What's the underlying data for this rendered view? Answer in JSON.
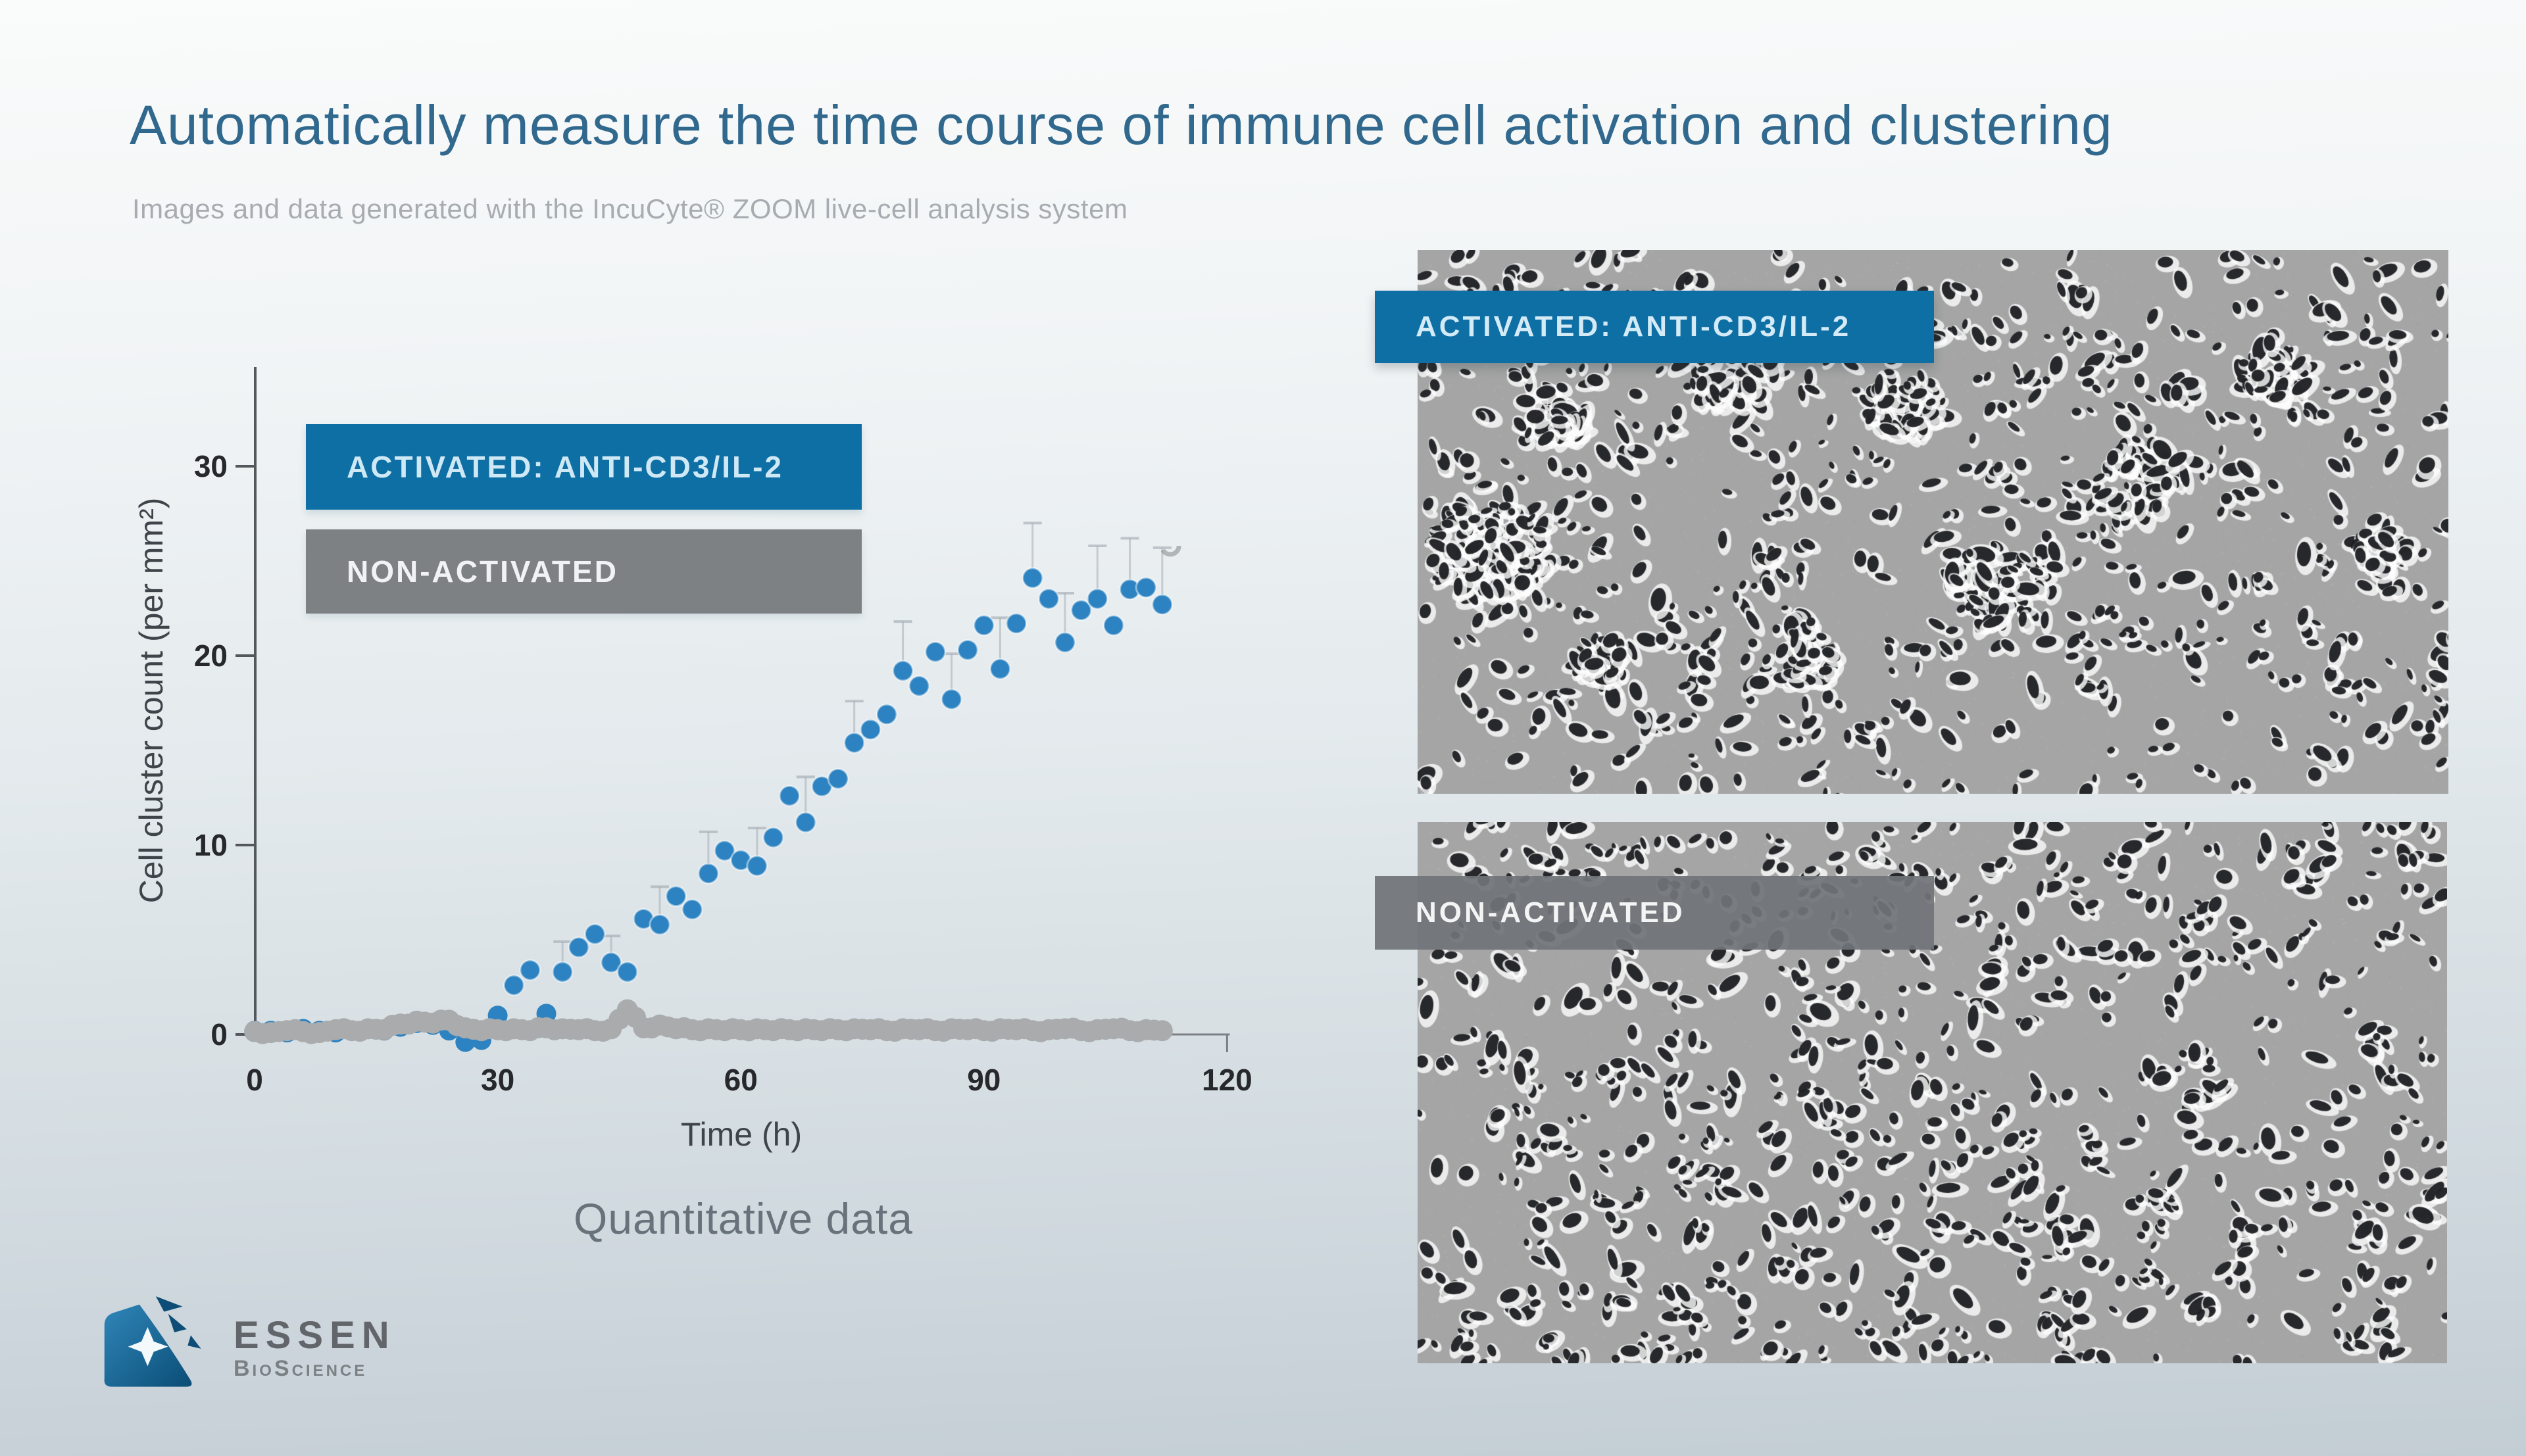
{
  "slide": {
    "title": "Automatically measure the time course of immune cell activation and clustering",
    "subtitle": "Images and data generated with the IncuCyte® ZOOM live-cell analysis system",
    "caption": "Quantitative data"
  },
  "logo": {
    "name": "ESSEN",
    "sub": "BioScience"
  },
  "chart_data": {
    "type": "scatter",
    "title": "",
    "xlabel": "Time (h)",
    "ylabel": "Cell cluster count (per mm²)",
    "xlim": [
      0,
      120
    ],
    "ylim": [
      0,
      34
    ],
    "xticks": [
      0,
      30,
      60,
      90,
      120
    ],
    "yticks": [
      0,
      10,
      20,
      30
    ],
    "grid": false,
    "legend_position": "top-left-inside",
    "x": [
      0,
      2,
      4,
      6,
      8,
      10,
      12,
      14,
      16,
      18,
      20,
      22,
      24,
      26,
      28,
      30,
      32,
      34,
      36,
      38,
      40,
      42,
      44,
      46,
      48,
      50,
      52,
      54,
      56,
      58,
      60,
      62,
      64,
      66,
      68,
      70,
      72,
      74,
      76,
      78,
      80,
      82,
      84,
      86,
      88,
      90,
      92,
      94,
      96,
      98,
      100,
      102,
      104,
      106,
      108,
      110,
      112
    ],
    "series": [
      {
        "name": "ACTIVATED: ANTI-CD3/IL-2",
        "legend_color": "#0e6fa4",
        "point_color": "#2d83c1",
        "values": [
          0.2,
          0.2,
          0.1,
          0.3,
          0.2,
          0.1,
          0.2,
          0.3,
          0.2,
          0.4,
          0.6,
          0.5,
          0.2,
          -0.4,
          -0.3,
          1.0,
          2.6,
          3.4,
          1.1,
          3.3,
          4.6,
          5.3,
          3.8,
          3.3,
          6.1,
          5.8,
          7.3,
          6.6,
          8.5,
          9.7,
          9.2,
          8.9,
          10.4,
          12.6,
          11.2,
          13.1,
          13.5,
          15.4,
          16.1,
          16.9,
          19.2,
          18.4,
          20.2,
          17.7,
          20.3,
          21.6,
          19.3,
          21.7,
          24.1,
          23.0,
          20.7,
          22.4,
          23.0,
          21.6,
          23.5,
          23.6,
          22.7
        ],
        "error_bars": {
          "x": [
            38,
            44,
            50,
            56,
            62,
            68,
            74,
            80,
            86,
            92,
            96,
            100,
            104,
            108,
            112
          ],
          "up": [
            1.6,
            1.4,
            2.0,
            2.2,
            2.0,
            2.4,
            2.2,
            2.6,
            2.4,
            2.7,
            2.9,
            2.6,
            2.8,
            2.7,
            3.0
          ]
        }
      },
      {
        "name": "NON-ACTIVATED",
        "legend_color": "#7e8184",
        "point_color": "#a9abac",
        "values": [
          0.15,
          0.1,
          0.2,
          0.15,
          0.1,
          0.25,
          0.2,
          0.3,
          0.25,
          0.55,
          0.7,
          0.6,
          0.75,
          0.35,
          0.2,
          0.25,
          0.3,
          0.2,
          0.35,
          0.3,
          0.25,
          0.2,
          0.3,
          1.3,
          0.35,
          0.5,
          0.3,
          0.25,
          0.3,
          0.2,
          0.25,
          0.3,
          0.2,
          0.25,
          0.3,
          0.2,
          0.25,
          0.3,
          0.25,
          0.2,
          0.3,
          0.25,
          0.2,
          0.3,
          0.25,
          0.2,
          0.3,
          0.25,
          0.2,
          0.25,
          0.3,
          0.2,
          0.25,
          0.3,
          0.2,
          0.25,
          0.2
        ]
      }
    ],
    "ghost_point": {
      "x": 113,
      "y": 25.8
    }
  },
  "micrographs": [
    {
      "label": "ACTIVATED: ANTI-CD3/IL-2",
      "label_color": "#0e6fa4",
      "clustered": true,
      "clusters": [
        [
          0.07,
          0.55,
          0.06,
          120
        ],
        [
          0.13,
          0.3,
          0.035,
          40
        ],
        [
          0.3,
          0.22,
          0.045,
          60
        ],
        [
          0.47,
          0.28,
          0.04,
          50
        ],
        [
          0.56,
          0.62,
          0.05,
          65
        ],
        [
          0.7,
          0.42,
          0.045,
          55
        ],
        [
          0.83,
          0.22,
          0.035,
          40
        ],
        [
          0.37,
          0.74,
          0.04,
          45
        ],
        [
          0.93,
          0.55,
          0.03,
          30
        ],
        [
          0.18,
          0.75,
          0.03,
          30
        ]
      ]
    },
    {
      "label": "NON-ACTIVATED",
      "label_color": "#707478",
      "clustered": false,
      "clusters": []
    }
  ]
}
